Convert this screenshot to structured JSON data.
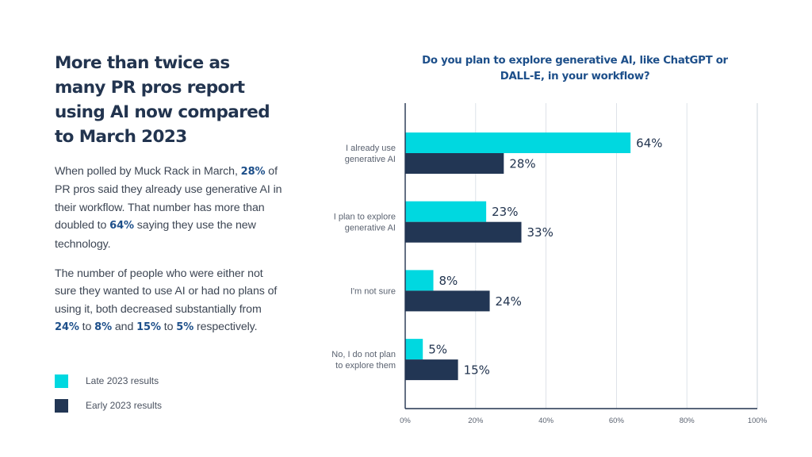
{
  "headline": "More than twice as many PR pros report using AI now compared to March 2023",
  "paragraph1": [
    {
      "text": "When polled by Muck Rack in March, ",
      "hl": false
    },
    {
      "text": "28%",
      "hl": true
    },
    {
      "text": " of PR pros said they already use generative AI in their workflow. That number has more than doubled to ",
      "hl": false
    },
    {
      "text": "64%",
      "hl": true
    },
    {
      "text": " saying they use the new technology.",
      "hl": false
    }
  ],
  "paragraph2": [
    {
      "text": "The number of people who were either not sure they wanted to use AI or had no plans of using it, both decreased substantially from ",
      "hl": false
    },
    {
      "text": "24%",
      "hl": true
    },
    {
      "text": " to ",
      "hl": false
    },
    {
      "text": "8%",
      "hl": true
    },
    {
      "text": " and ",
      "hl": false
    },
    {
      "text": "15%",
      "hl": true
    },
    {
      "text": " to ",
      "hl": false
    },
    {
      "text": "5%",
      "hl": true
    },
    {
      "text": " respectively.",
      "hl": false
    }
  ],
  "colors": {
    "late": "#00d8e0",
    "early": "#223654",
    "heading": "#22344f",
    "highlight": "#1d4f8a",
    "grid": "#d5dbe3",
    "axis": "#22344f"
  },
  "chart_data": {
    "type": "bar",
    "orientation": "horizontal",
    "title": "Do you plan to explore generative AI, like ChatGPT or DALL-E, in your workflow?",
    "categories": [
      [
        "I already use",
        "generative AI"
      ],
      [
        "I plan to explore",
        "generative AI"
      ],
      [
        "I'm not sure"
      ],
      [
        "No, I do not plan",
        "to explore them"
      ]
    ],
    "series": [
      {
        "name": "Late 2023 results",
        "values": [
          64,
          23,
          8,
          5
        ]
      },
      {
        "name": "Early 2023 results",
        "values": [
          28,
          33,
          24,
          15
        ]
      }
    ],
    "value_suffix": "%",
    "xlim": [
      0,
      100
    ],
    "xticks": [
      0,
      20,
      40,
      60,
      80,
      100
    ],
    "xtick_labels": [
      "0%",
      "20%",
      "40%",
      "60%",
      "80%",
      "100%"
    ],
    "xlabel": "",
    "ylabel": "",
    "grid": true,
    "legend_position": "bottom-left"
  }
}
